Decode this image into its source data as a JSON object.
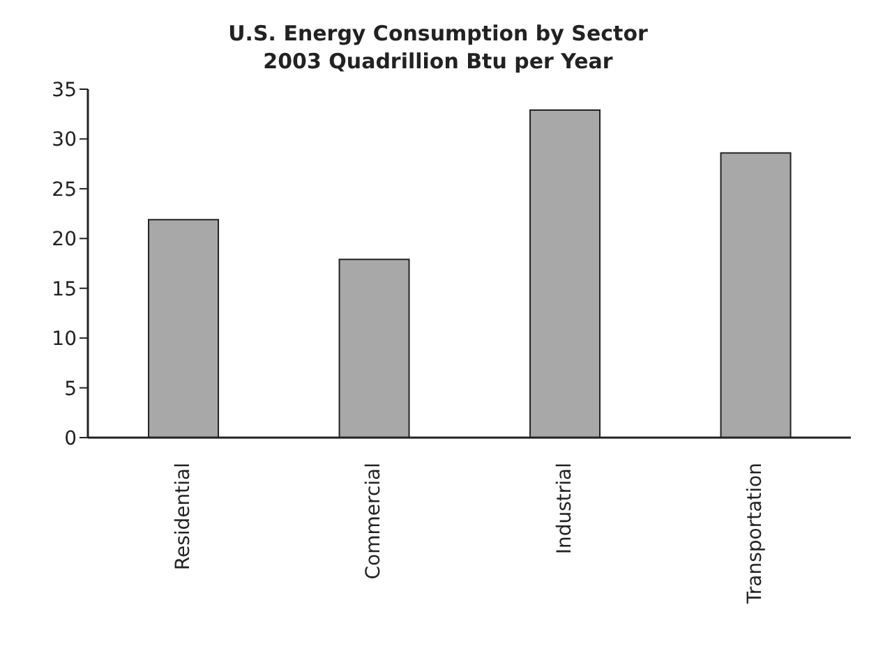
{
  "chart_data": {
    "type": "bar",
    "title": "U.S. Energy Consumption by Sector",
    "subtitle": "2003 Quadrillion Btu per Year",
    "categories": [
      "Residential",
      "Commercial",
      "Industrial",
      "Transportation"
    ],
    "values": [
      21.9,
      17.9,
      32.9,
      28.6
    ],
    "color": "#a8a8a8",
    "ylim": [
      0,
      35
    ],
    "yticks": [
      0,
      5,
      10,
      15,
      20,
      25,
      30,
      35
    ],
    "grid": false
  }
}
